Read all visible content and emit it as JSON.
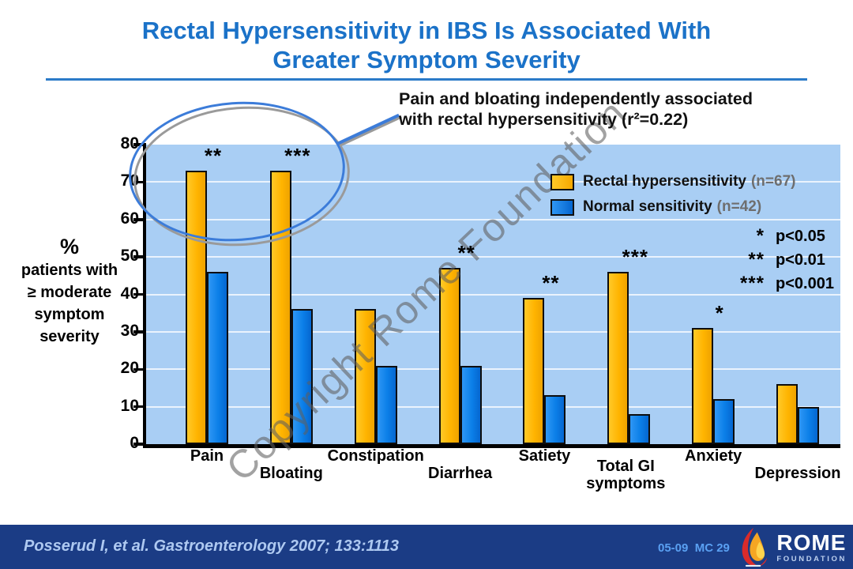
{
  "slide": {
    "title_line1": "Rectal Hypersensitivity in IBS Is Associated With",
    "title_line2": "Greater Symptom Severity",
    "title_color": "#1B72C8"
  },
  "annotation": {
    "line1": "Pain and bloating independently associated",
    "line2": "with rectal hypersensitivity (r²=0.22)"
  },
  "y_axis_label_lines": [
    "%",
    "patients with",
    "≥ moderate",
    "symptom",
    "severity"
  ],
  "legend": {
    "items": [
      {
        "label": "Rectal hypersensitivity",
        "n": "(n=67)",
        "color": "#FFB808"
      },
      {
        "label": "Normal sensitivity",
        "n": "(n=42)",
        "color": "#0B7FE8"
      }
    ]
  },
  "p_key": {
    "rows": [
      {
        "stars": "*",
        "label": "p<0.05"
      },
      {
        "stars": "**",
        "label": "p<0.01"
      },
      {
        "stars": "***",
        "label": "p<0.001"
      }
    ]
  },
  "watermark": "Copyright Rome Foundation",
  "footer": {
    "citation": "Posserud I, et al. Gastroenterology 2007; 133:1113",
    "slide_code": "05-09  MC 29",
    "logo_name": "ROME",
    "logo_subtitle": "FOUNDATION"
  },
  "chart_data": {
    "type": "bar",
    "categories": [
      "Pain",
      "Bloating",
      "Constipation",
      "Diarrhea",
      "Satiety",
      "Total GI symptoms",
      "Anxiety",
      "Depression"
    ],
    "series": [
      {
        "name": "Rectal hypersensitivity",
        "n_label": "(n=67)",
        "color": "#FFB808",
        "values": [
          73,
          73,
          36,
          47,
          39,
          46,
          31,
          16
        ]
      },
      {
        "name": "Normal sensitivity",
        "n_label": "(n=42)",
        "color": "#0B7FE8",
        "values": [
          46,
          36,
          21,
          21,
          13,
          8,
          12,
          10
        ]
      }
    ],
    "significance": [
      "**",
      "***",
      "",
      "**",
      "**",
      "***",
      "*",
      ""
    ],
    "title": "",
    "xlabel": "",
    "ylabel": "% patients with ≥ moderate symptom severity",
    "ylim": [
      0,
      80
    ],
    "ytick_step": 10,
    "grid": true,
    "legend_position": "top-right",
    "plot_background": "#A9CEF4"
  }
}
